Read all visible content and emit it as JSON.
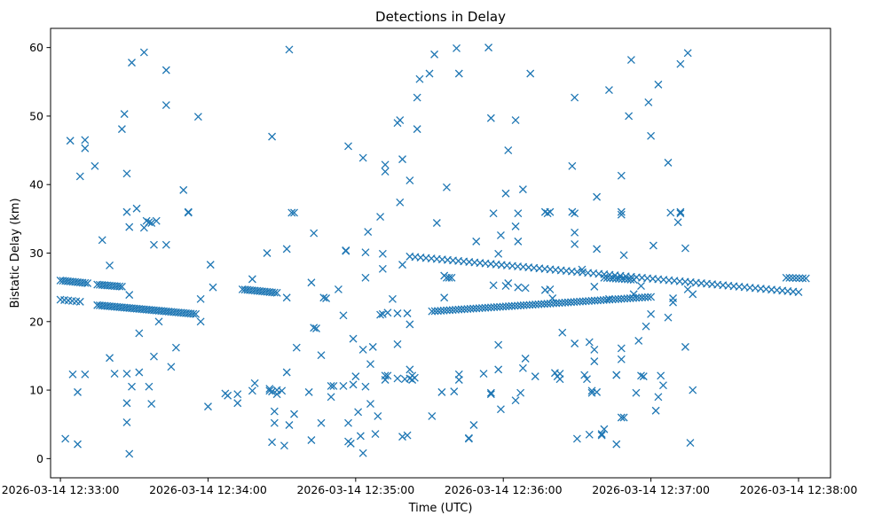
{
  "chart_data": {
    "type": "scatter",
    "title": "Detections in Delay",
    "xlabel": "Time (UTC)",
    "ylabel": "Bistatic Delay (km)",
    "marker": "x",
    "color": "#1f77b4",
    "grid": false,
    "x_unit": "seconds since 2026-03-14 12:33:00",
    "xlim": [
      -4,
      313
    ],
    "ylim": [
      -2.8,
      62.8
    ],
    "x_ticks": [
      {
        "value": 0,
        "label": "2026-03-14 12:33:00"
      },
      {
        "value": 60,
        "label": "2026-03-14 12:34:00"
      },
      {
        "value": 120,
        "label": "2026-03-14 12:35:00"
      },
      {
        "value": 180,
        "label": "2026-03-14 12:36:00"
      },
      {
        "value": 240,
        "label": "2026-03-14 12:37:00"
      },
      {
        "value": 300,
        "label": "2026-03-14 12:38:00"
      }
    ],
    "y_ticks": [
      {
        "value": 0,
        "label": "0"
      },
      {
        "value": 10,
        "label": "10"
      },
      {
        "value": 20,
        "label": "20"
      },
      {
        "value": 30,
        "label": "30"
      },
      {
        "value": 40,
        "label": "40"
      },
      {
        "value": 50,
        "label": "50"
      },
      {
        "value": 60,
        "label": "60"
      }
    ],
    "tracks": [
      {
        "x0": 0,
        "x1": 11,
        "y0": 26.0,
        "y1": 25.6,
        "step": 1.0
      },
      {
        "x0": 0,
        "x1": 8,
        "y0": 23.2,
        "y1": 22.9,
        "step": 1.5
      },
      {
        "x0": 15,
        "x1": 25,
        "y0": 25.4,
        "y1": 25.1,
        "step": 1.0
      },
      {
        "x0": 15,
        "x1": 55,
        "y0": 22.4,
        "y1": 21.1,
        "step": 1.0
      },
      {
        "x0": 74,
        "x1": 88,
        "y0": 24.7,
        "y1": 24.2,
        "step": 1.0
      },
      {
        "x0": 142,
        "x1": 300,
        "y0": 29.5,
        "y1": 24.3,
        "step": 2.2
      },
      {
        "x0": 151,
        "x1": 240,
        "y0": 21.5,
        "y1": 23.6,
        "step": 1.2
      },
      {
        "x0": 221,
        "x1": 233,
        "y0": 26.4,
        "y1": 26.1,
        "step": 1.2
      },
      {
        "x0": 295,
        "x1": 303,
        "y0": 26.4,
        "y1": 26.3,
        "step": 1.3
      }
    ],
    "points": [
      [
        2,
        2.9
      ],
      [
        4,
        46.4
      ],
      [
        5,
        12.3
      ],
      [
        7,
        2.1
      ],
      [
        7,
        9.7
      ],
      [
        8,
        41.2
      ],
      [
        10,
        46.5
      ],
      [
        10,
        45.3
      ],
      [
        10,
        12.3
      ],
      [
        14,
        42.7
      ],
      [
        17,
        31.9
      ],
      [
        20,
        28.2
      ],
      [
        20,
        14.7
      ],
      [
        22,
        12.4
      ],
      [
        25,
        48.1
      ],
      [
        26,
        50.3
      ],
      [
        27,
        36
      ],
      [
        27,
        41.6
      ],
      [
        27,
        12.4
      ],
      [
        27,
        8.1
      ],
      [
        27,
        5.3
      ],
      [
        28,
        33.8
      ],
      [
        28,
        23.9
      ],
      [
        28,
        0.7
      ],
      [
        29,
        57.8
      ],
      [
        29,
        10.5
      ],
      [
        31,
        36.5
      ],
      [
        32,
        12.6
      ],
      [
        32,
        18.3
      ],
      [
        34,
        59.3
      ],
      [
        34,
        33.7
      ],
      [
        35,
        34.7
      ],
      [
        36,
        34.5
      ],
      [
        36,
        10.5
      ],
      [
        37,
        34.4
      ],
      [
        37,
        8
      ],
      [
        38,
        14.9
      ],
      [
        38,
        31.2
      ],
      [
        39,
        34.7
      ],
      [
        40,
        20
      ],
      [
        43,
        31.2
      ],
      [
        43,
        56.7
      ],
      [
        43,
        51.6
      ],
      [
        45,
        13.4
      ],
      [
        47,
        16.2
      ],
      [
        50,
        39.2
      ],
      [
        52,
        36
      ],
      [
        52,
        35.9
      ],
      [
        56,
        49.9
      ],
      [
        57,
        23.3
      ],
      [
        57,
        20
      ],
      [
        60,
        7.6
      ],
      [
        61,
        28.3
      ],
      [
        62,
        25
      ],
      [
        67,
        9.5
      ],
      [
        68,
        9.2
      ],
      [
        72,
        9.4
      ],
      [
        72,
        8.1
      ],
      [
        78,
        26.2
      ],
      [
        78,
        9.9
      ],
      [
        79,
        11
      ],
      [
        84,
        30
      ],
      [
        85,
        10.2
      ],
      [
        85,
        9.9
      ],
      [
        86,
        47
      ],
      [
        86,
        9.8
      ],
      [
        86,
        2.4
      ],
      [
        87,
        6.9
      ],
      [
        87,
        5.2
      ],
      [
        88,
        10
      ],
      [
        88,
        9.4
      ],
      [
        90,
        9.9
      ],
      [
        91,
        1.9
      ],
      [
        92,
        12.6
      ],
      [
        92,
        30.6
      ],
      [
        92,
        23.5
      ],
      [
        93,
        59.7
      ],
      [
        93,
        4.9
      ],
      [
        94,
        35.9
      ],
      [
        95,
        35.9
      ],
      [
        95,
        6.5
      ],
      [
        96,
        16.2
      ],
      [
        101,
        9.7
      ],
      [
        102,
        25.7
      ],
      [
        102,
        2.7
      ],
      [
        103,
        19.1
      ],
      [
        103,
        32.9
      ],
      [
        104,
        19
      ],
      [
        106,
        5.2
      ],
      [
        106,
        15.1
      ],
      [
        107,
        23.5
      ],
      [
        108,
        23.4
      ],
      [
        110,
        9
      ],
      [
        110,
        10.6
      ],
      [
        111,
        10.6
      ],
      [
        113,
        24.7
      ],
      [
        115,
        20.9
      ],
      [
        115,
        10.6
      ],
      [
        116,
        30.3
      ],
      [
        116,
        30.4
      ],
      [
        117,
        45.6
      ],
      [
        117,
        2.5
      ],
      [
        117,
        5.2
      ],
      [
        118,
        2.2
      ],
      [
        119,
        17.5
      ],
      [
        119,
        10.8
      ],
      [
        120,
        12
      ],
      [
        121,
        6.8
      ],
      [
        122,
        3.3
      ],
      [
        123,
        0.8
      ],
      [
        123,
        43.9
      ],
      [
        123,
        15.9
      ],
      [
        124,
        26.4
      ],
      [
        124,
        30.1
      ],
      [
        124,
        10.5
      ],
      [
        125,
        33.1
      ],
      [
        126,
        13.8
      ],
      [
        126,
        8
      ],
      [
        127,
        16.3
      ],
      [
        128,
        3.6
      ],
      [
        129,
        6.2
      ],
      [
        130,
        35.3
      ],
      [
        130,
        21
      ],
      [
        131,
        29.9
      ],
      [
        131,
        27.7
      ],
      [
        131,
        21.1
      ],
      [
        132,
        42.9
      ],
      [
        132,
        41.9
      ],
      [
        132,
        11.5
      ],
      [
        132,
        12.1
      ],
      [
        133,
        21.3
      ],
      [
        133,
        12.1
      ],
      [
        135,
        23.3
      ],
      [
        137,
        49
      ],
      [
        137,
        16.7
      ],
      [
        137,
        11.7
      ],
      [
        137,
        21.2
      ],
      [
        138,
        49.4
      ],
      [
        138,
        37.4
      ],
      [
        139,
        43.7
      ],
      [
        139,
        28.3
      ],
      [
        139,
        3.2
      ],
      [
        140,
        11.6
      ],
      [
        141,
        21.2
      ],
      [
        141,
        3.4
      ],
      [
        142,
        40.6
      ],
      [
        142,
        13
      ],
      [
        142,
        11.7
      ],
      [
        142,
        19.6
      ],
      [
        143,
        11.5
      ],
      [
        143,
        12.1
      ],
      [
        144,
        11.8
      ],
      [
        145,
        52.7
      ],
      [
        145,
        48.1
      ],
      [
        146,
        55.4
      ],
      [
        150,
        56.2
      ],
      [
        151,
        6.2
      ],
      [
        152,
        59
      ],
      [
        153,
        34.4
      ],
      [
        155,
        9.7
      ],
      [
        156,
        26.7
      ],
      [
        156,
        23.5
      ],
      [
        157,
        39.6
      ],
      [
        157,
        26.4
      ],
      [
        158,
        26.4
      ],
      [
        159,
        26.4
      ],
      [
        160,
        9.8
      ],
      [
        161,
        59.9
      ],
      [
        162,
        56.2
      ],
      [
        162,
        12.3
      ],
      [
        162,
        11.5
      ],
      [
        166,
        3
      ],
      [
        166,
        2.9
      ],
      [
        168,
        4.9
      ],
      [
        169,
        31.7
      ],
      [
        172,
        12.4
      ],
      [
        174,
        60
      ],
      [
        175,
        9.6
      ],
      [
        175,
        9.4
      ],
      [
        175,
        49.7
      ],
      [
        176,
        35.8
      ],
      [
        176,
        25.3
      ],
      [
        178,
        29.9
      ],
      [
        178,
        16.6
      ],
      [
        178,
        13
      ],
      [
        179,
        32.6
      ],
      [
        179,
        7.2
      ],
      [
        181,
        38.7
      ],
      [
        181,
        25.2
      ],
      [
        182,
        45
      ],
      [
        182,
        25.6
      ],
      [
        185,
        8.5
      ],
      [
        185,
        49.4
      ],
      [
        185,
        33.9
      ],
      [
        186,
        35.8
      ],
      [
        186,
        31.7
      ],
      [
        186,
        25
      ],
      [
        187,
        9.6
      ],
      [
        188,
        39.3
      ],
      [
        188,
        13.2
      ],
      [
        189,
        14.6
      ],
      [
        189,
        24.9
      ],
      [
        191,
        56.2
      ],
      [
        193,
        12
      ],
      [
        197,
        36
      ],
      [
        197,
        24.6
      ],
      [
        198,
        35.8
      ],
      [
        199,
        36
      ],
      [
        199,
        24.7
      ],
      [
        200,
        23.4
      ],
      [
        201,
        12.5
      ],
      [
        202,
        12
      ],
      [
        203,
        11.6
      ],
      [
        203,
        12.4
      ],
      [
        204,
        18.4
      ],
      [
        208,
        42.7
      ],
      [
        208,
        36
      ],
      [
        209,
        35.8
      ],
      [
        209,
        31.3
      ],
      [
        209,
        52.7
      ],
      [
        209,
        33
      ],
      [
        209,
        16.8
      ],
      [
        210,
        2.9
      ],
      [
        212,
        27.6
      ],
      [
        213,
        12.2
      ],
      [
        214,
        11.6
      ],
      [
        215,
        17
      ],
      [
        215,
        3.5
      ],
      [
        216,
        9.9
      ],
      [
        216,
        9.6
      ],
      [
        217,
        14.2
      ],
      [
        217,
        15.9
      ],
      [
        217,
        25.1
      ],
      [
        218,
        38.2
      ],
      [
        218,
        30.6
      ],
      [
        218,
        9.7
      ],
      [
        220,
        3.6
      ],
      [
        220,
        3.4
      ],
      [
        221,
        4.3
      ],
      [
        223,
        53.8
      ],
      [
        223,
        23.3
      ],
      [
        226,
        12.2
      ],
      [
        226,
        2.1
      ],
      [
        226,
        12.2
      ],
      [
        228,
        41.3
      ],
      [
        228,
        36
      ],
      [
        228,
        35.6
      ],
      [
        228,
        16.1
      ],
      [
        228,
        14.5
      ],
      [
        228,
        6
      ],
      [
        229,
        6
      ],
      [
        229,
        29.7
      ],
      [
        231,
        50
      ],
      [
        232,
        58.2
      ],
      [
        233,
        24
      ],
      [
        234,
        9.6
      ],
      [
        235,
        17.2
      ],
      [
        236,
        25.2
      ],
      [
        236,
        12.1
      ],
      [
        237,
        12
      ],
      [
        238,
        19.3
      ],
      [
        239,
        52
      ],
      [
        240,
        47.1
      ],
      [
        240,
        21.1
      ],
      [
        241,
        31.1
      ],
      [
        242,
        7
      ],
      [
        243,
        54.6
      ],
      [
        243,
        9
      ],
      [
        244,
        12.1
      ],
      [
        245,
        10.7
      ],
      [
        247,
        43.2
      ],
      [
        247,
        20.6
      ],
      [
        248,
        35.9
      ],
      [
        249,
        23.4
      ],
      [
        249,
        22.8
      ],
      [
        251,
        34.5
      ],
      [
        252,
        36
      ],
      [
        252,
        35.8
      ],
      [
        252,
        57.6
      ],
      [
        254,
        16.3
      ],
      [
        254,
        30.7
      ],
      [
        255,
        24.7
      ],
      [
        255,
        59.2
      ],
      [
        256,
        2.3
      ],
      [
        257,
        24
      ],
      [
        257,
        10
      ]
    ]
  }
}
